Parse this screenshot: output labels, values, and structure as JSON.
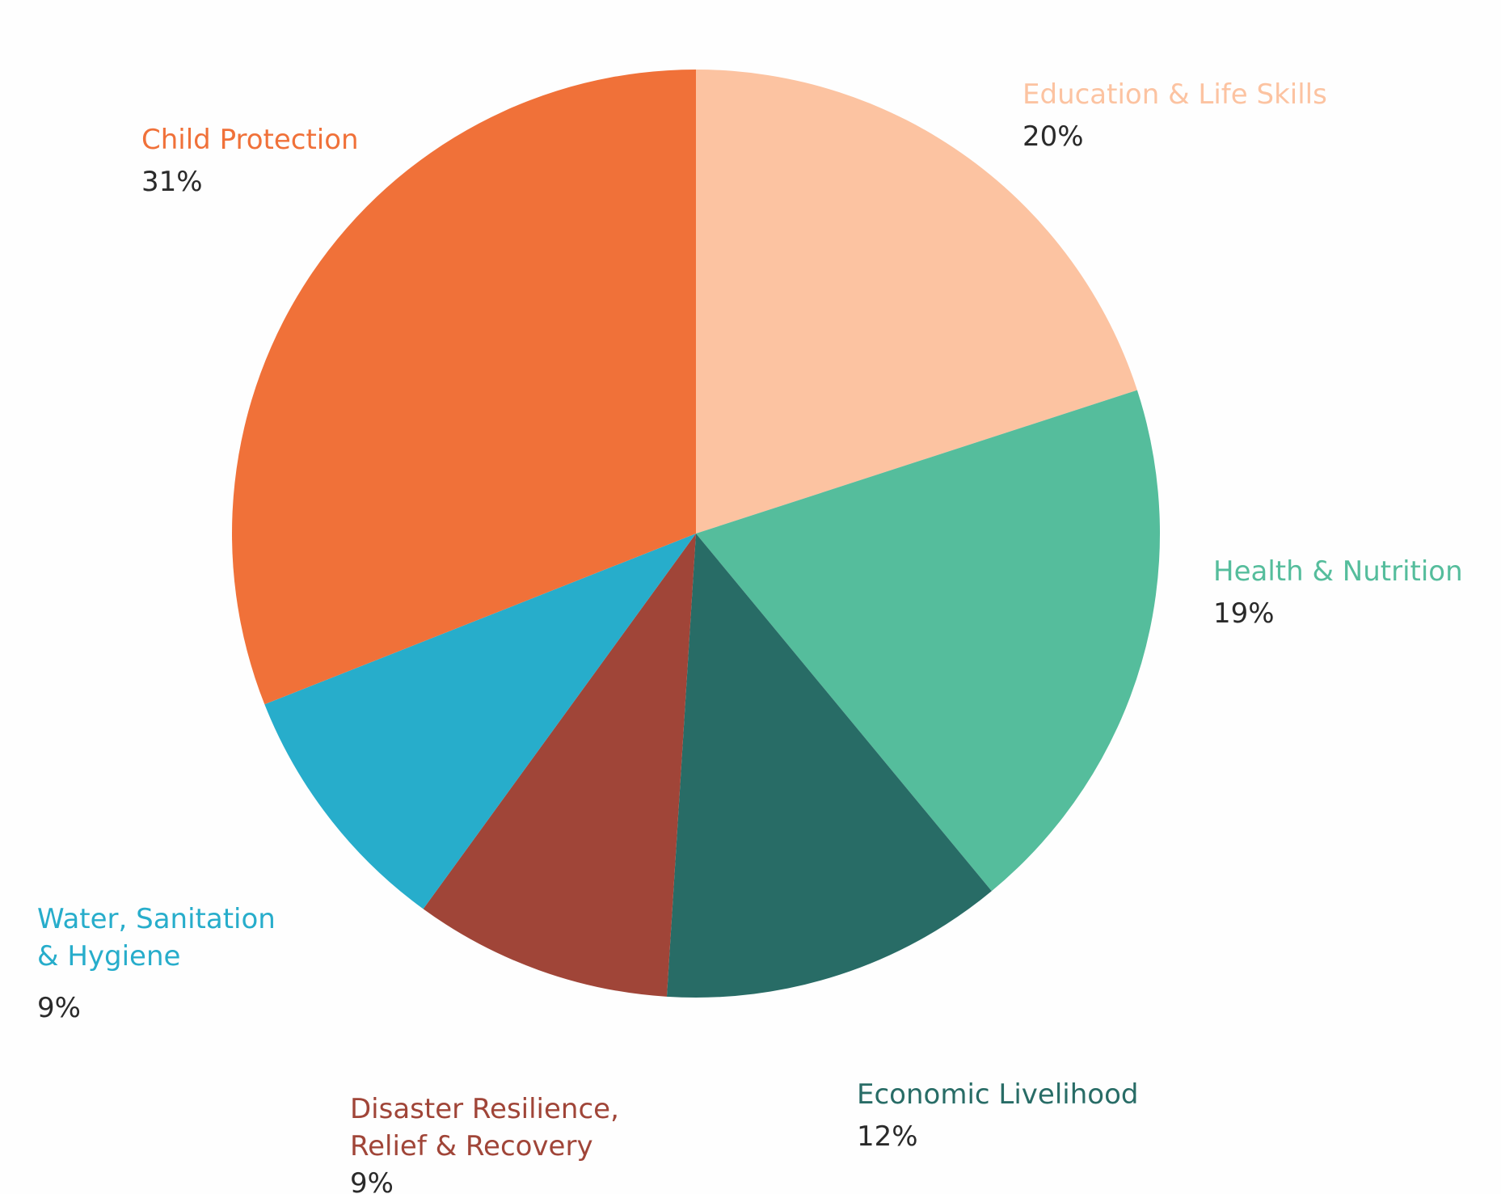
{
  "chart_data": {
    "type": "pie",
    "start": "top",
    "direction": "clockwise",
    "slices": [
      {
        "label": "Education & Life Skills",
        "value": 20,
        "value_label": "20%",
        "color": "#FCC3A1"
      },
      {
        "label": "Health & Nutrition",
        "value": 19,
        "value_label": "19%",
        "color": "#55BD9C"
      },
      {
        "label": "Economic Livelihood",
        "value": 12,
        "value_label": "12%",
        "color": "#286C66"
      },
      {
        "label": "Disaster Resilience,\nRelief & Recovery",
        "value": 9,
        "value_label": "9%",
        "color": "#A04538"
      },
      {
        "label": "Water, Sanitation\n& Hygiene",
        "value": 9,
        "value_label": "9%",
        "color": "#27ADCB"
      },
      {
        "label": "Child Protection",
        "value": 31,
        "value_label": "31%",
        "color": "#F07139"
      }
    ]
  }
}
